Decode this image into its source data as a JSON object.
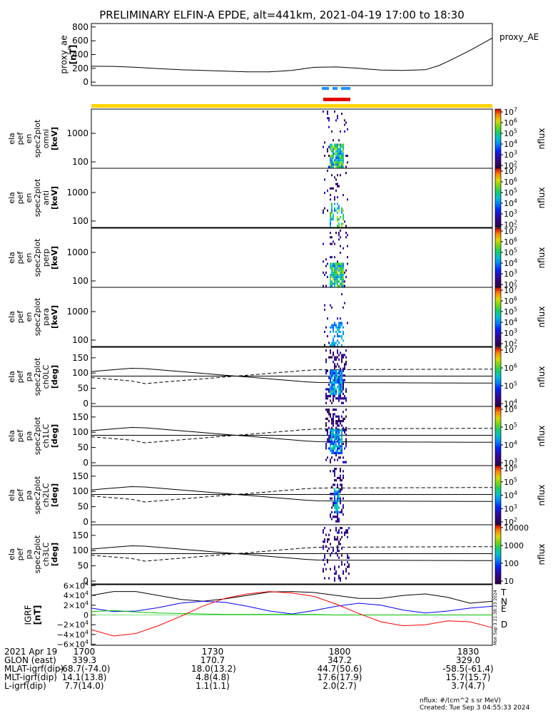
{
  "title": "PRELIMINARY ELFIN-A EPDE, alt=441km, 2021-04-19 17:00 to 18:30",
  "time_axis": {
    "start_min": 0,
    "end_min": 90,
    "ticks": [
      "1700",
      "1730",
      "1800",
      "1830"
    ]
  },
  "ae_panel": {
    "ylabel": "proxy_ae\n[nT]",
    "legend": "proxy_AE",
    "yticks": [
      "0",
      "200",
      "400",
      "600",
      "800"
    ],
    "ylim": [
      -50,
      850
    ]
  },
  "spectra_panels": [
    {
      "name": "omni",
      "ylabel": "ela\npef\nen\nspec2plot\nomni\n[keV]",
      "yticks": [
        "100",
        "1000"
      ]
    },
    {
      "name": "anti",
      "ylabel": "ela\npef\nen\nspec2plot\nanti\n[keV]",
      "yticks": [
        "100",
        "1000"
      ]
    },
    {
      "name": "perp",
      "ylabel": "ela\npef\nen\nspec2plot\nperp\n[keV]",
      "yticks": [
        "100",
        "1000"
      ]
    },
    {
      "name": "para",
      "ylabel": "ela\npef\nen\nspec2plot\npara\n[keV]",
      "yticks": [
        "100",
        "1000"
      ]
    }
  ],
  "pa_panels": [
    {
      "name": "ch0LC",
      "ylabel": "ela\npef\npa\nspec2plot\nch0LC\n[deg]",
      "yticks": [
        "0",
        "50",
        "100",
        "150"
      ]
    },
    {
      "name": "ch1LC",
      "ylabel": "ela\npef\npa\nspec2plot\nch1LC\n[deg]",
      "yticks": [
        "0",
        "50",
        "100",
        "150"
      ]
    },
    {
      "name": "ch2LC",
      "ylabel": "ela\npef\npa\nspec2plot\nch2LC\n[deg]",
      "yticks": [
        "0",
        "50",
        "100",
        "150"
      ]
    },
    {
      "name": "ch3LC",
      "ylabel": "ela\npef\npa\nspec2plot\nch3LC\n[deg]",
      "yticks": [
        "0",
        "50",
        "100",
        "150"
      ]
    }
  ],
  "colorbars": [
    {
      "label": "nflux",
      "ticks": [
        "10^2",
        "10^3",
        "10^4",
        "10^5",
        "10^6",
        "10^7"
      ]
    },
    {
      "label": "nflux",
      "ticks": [
        "10^2",
        "10^3",
        "10^4",
        "10^5",
        "10^6",
        "10^7"
      ]
    },
    {
      "label": "nflux",
      "ticks": [
        "10^2",
        "10^3",
        "10^4",
        "10^5",
        "10^6",
        "10^7"
      ]
    },
    {
      "label": "nflux",
      "ticks": [
        "10^2",
        "10^3",
        "10^4",
        "10^5",
        "10^6",
        "10^7"
      ]
    },
    {
      "label": "nflux",
      "ticks": [
        "10^4",
        "10^5",
        "10^6",
        "10^7"
      ]
    },
    {
      "label": "nflux",
      "ticks": [
        "10^3",
        "10^4",
        "10^5",
        "10^6"
      ]
    },
    {
      "label": "nflux",
      "ticks": [
        "10^2",
        "10^3",
        "10^4",
        "10^5",
        "10^6"
      ]
    },
    {
      "label": "nflux",
      "ticks": [
        "10",
        "100",
        "1000",
        "10000"
      ]
    }
  ],
  "igrf_panel": {
    "ylabel": "IGRF\n[nT]",
    "yticks": [
      "−6×10^4",
      "−4×10^4",
      "−2×10^4",
      "0",
      "2×10^4",
      "4×10^4",
      "6×10^4"
    ],
    "legend": [
      {
        "label": "T",
        "color": "#000000"
      },
      {
        "label": "N",
        "color": "#0000ff"
      },
      {
        "label": "E",
        "color": "#00c000"
      },
      {
        "label": "D",
        "color": "#ff0000"
      }
    ],
    "stamp": "Mon Sep  3 21:38:33 2024"
  },
  "footer_rows": [
    {
      "label": "2021 Apr 19",
      "values": [
        "1700",
        "1730",
        "1800",
        "1830"
      ]
    },
    {
      "label": "GLON (east)",
      "values": [
        "339.3",
        "170.7",
        "347.2",
        "329.0"
      ]
    },
    {
      "label": "MLAT-igrf(dip)",
      "values": [
        "-68.7(-74.0)",
        "18.0(13.2)",
        "44.7(50.6)",
        "-58.5(-61.4)"
      ]
    },
    {
      "label": "MLT-igrf(dip)",
      "values": [
        "14.1(13.8)",
        "4.8(4.8)",
        "17.6(17.9)",
        "15.7(15.7)"
      ]
    },
    {
      "label": "L-igrf(dip)",
      "values": [
        "7.7(14.0)",
        "1.1(1.1)",
        "2.0(2.7)",
        "3.7(4.7)"
      ]
    }
  ],
  "credit": {
    "units": "nflux: #/(cm^2 s sr MeV)",
    "created": "Created: Tue Sep  3 04:55:33 2024"
  },
  "chart_data": [
    {
      "type": "line",
      "title": "proxy_AE",
      "xlabel": "",
      "ylabel": "proxy_ae [nT]",
      "ylim": [
        -50,
        850
      ],
      "series": [
        {
          "name": "proxy_AE",
          "x": [
            0,
            5,
            10,
            15,
            20,
            25,
            30,
            35,
            40,
            45,
            50,
            55,
            60,
            65,
            70,
            75,
            78,
            80,
            85,
            90
          ],
          "values": [
            230,
            228,
            215,
            195,
            180,
            170,
            160,
            150,
            150,
            170,
            215,
            220,
            200,
            175,
            170,
            180,
            240,
            300,
            460,
            640
          ]
        }
      ]
    },
    {
      "type": "line",
      "title": "",
      "xlabel": "",
      "ylabel": "IGRF [nT]",
      "ylim": [
        -62000,
        62000
      ],
      "series": [
        {
          "name": "T",
          "x": [
            0,
            5,
            10,
            15,
            20,
            25,
            30,
            35,
            40,
            45,
            50,
            55,
            60,
            65,
            70,
            75,
            80,
            85,
            90
          ],
          "values": [
            40000,
            48000,
            48000,
            40000,
            32000,
            28000,
            33000,
            40000,
            47000,
            48000,
            46000,
            40000,
            34000,
            34000,
            40000,
            43000,
            36000,
            24000,
            28000
          ]
        },
        {
          "name": "N",
          "x": [
            0,
            5,
            10,
            15,
            20,
            25,
            30,
            35,
            40,
            45,
            50,
            55,
            60,
            65,
            70,
            75,
            80,
            85,
            90
          ],
          "values": [
            14000,
            7000,
            8000,
            15000,
            24000,
            28000,
            26000,
            18000,
            8000,
            2000,
            9000,
            18000,
            24000,
            20000,
            10000,
            4000,
            8000,
            14000,
            18000
          ]
        },
        {
          "name": "E",
          "x": [
            0,
            5,
            10,
            15,
            20,
            25,
            30,
            35,
            40,
            45,
            50,
            55,
            60,
            65,
            70,
            75,
            80,
            85,
            90
          ],
          "values": [
            7000,
            9000,
            6000,
            4000,
            3000,
            2000,
            1000,
            1000,
            1000,
            1000,
            1000,
            0,
            0,
            0,
            0,
            0,
            0,
            0,
            0
          ]
        },
        {
          "name": "D",
          "x": [
            0,
            5,
            10,
            15,
            20,
            25,
            30,
            35,
            40,
            45,
            50,
            55,
            60,
            65,
            70,
            75,
            80,
            85,
            90
          ],
          "values": [
            -30000,
            -43000,
            -38000,
            -22000,
            -3000,
            18000,
            34000,
            43000,
            48000,
            45000,
            38000,
            22000,
            3000,
            -14000,
            -22000,
            -20000,
            -12000,
            -14000,
            -26000
          ]
        }
      ]
    }
  ]
}
